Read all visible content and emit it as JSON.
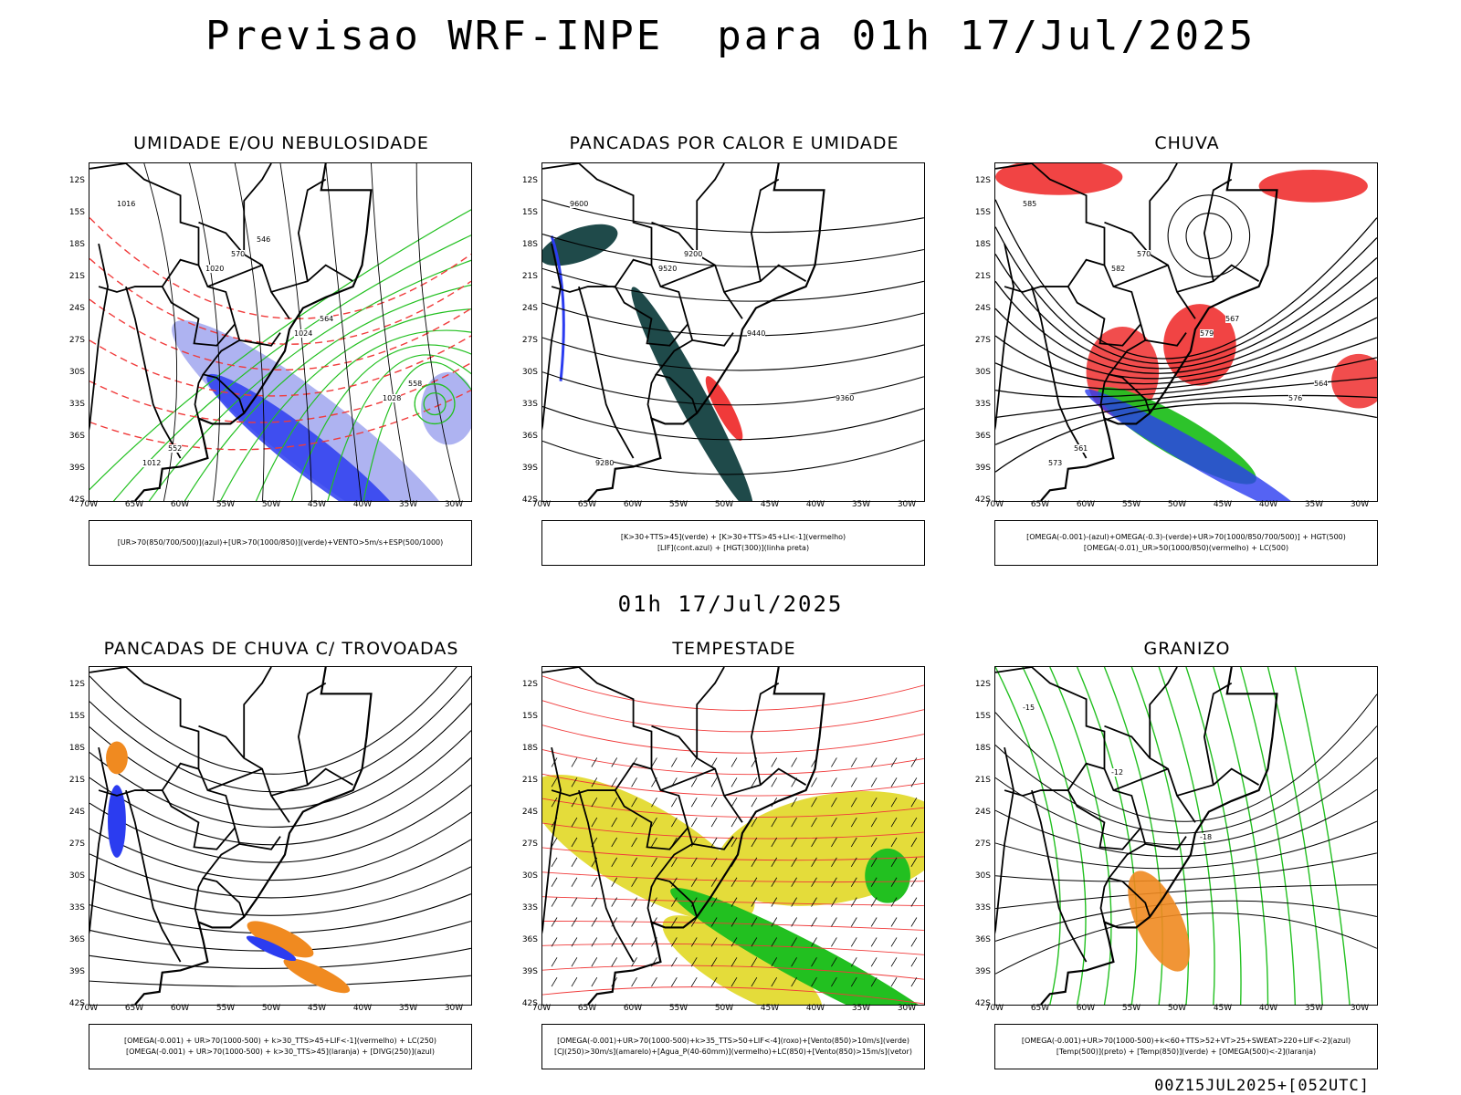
{
  "header": {
    "title": "Previsao WRF-INPE  para 01h 17/Jul/2025"
  },
  "subheader": "01h 17/Jul/2025",
  "footer": "00Z15JUL2025+[052UTC]",
  "lat_labels": [
    "12S",
    "15S",
    "18S",
    "21S",
    "24S",
    "27S",
    "30S",
    "33S",
    "36S",
    "39S",
    "42S"
  ],
  "lon_labels": [
    "70W",
    "65W",
    "60W",
    "55W",
    "50W",
    "45W",
    "40W",
    "35W",
    "30W"
  ],
  "panels": [
    {
      "id": "umidade",
      "title": "UMIDADE E/OU NEBULOSIDADE",
      "legend": [
        "[UR>70(850/700/500)](azul)+[UR>70(1000/850)](verde)+VENTO>5m/s+ESP(500/1000)"
      ],
      "contour_labels": [
        "1016",
        "1020",
        "1024",
        "1028",
        "1012",
        "570",
        "564",
        "558",
        "552",
        "546"
      ]
    },
    {
      "id": "pancadas-calor",
      "title": "PANCADAS POR CALOR E UMIDADE",
      "legend": [
        "[K>30+TTS>45](verde) + [K>30+TTS>45+LI<-1](vermelho)",
        "[LIF](cont.azul) + [HGT(300)](linha preta)"
      ],
      "contour_labels": [
        "9600",
        "9520",
        "9440",
        "9360",
        "9280",
        "9200"
      ]
    },
    {
      "id": "chuva",
      "title": "CHUVA",
      "legend": [
        "[OMEGA(-0.001)-(azul)+OMEGA(-0.3)-(verde)+UR>70(1000/850/700/500)] + HGT(500)",
        "[OMEGA(-0.01)_UR>50(1000/850)(vermelho) + LC(500)"
      ],
      "contour_labels": [
        "585",
        "582",
        "579",
        "576",
        "573",
        "570",
        "567",
        "564",
        "561"
      ]
    },
    {
      "id": "trovoadas",
      "title": "PANCADAS DE CHUVA C/ TROVOADAS",
      "legend": [
        "[OMEGA(-0.001) + UR>70(1000-500) + k>30_TTS>45+LIF<-1](vermelho) + LC(250)",
        "[OMEGA(-0.001) + UR>70(1000-500) + k>30_TTS>45](laranja) + [DIVG(250)](azul)"
      ],
      "contour_labels": []
    },
    {
      "id": "tempestade",
      "title": "TEMPESTADE",
      "legend": [
        "[OMEGA(-0.001)+UR>70(1000-500)+k>35_TTS>50+LIF<-4](roxo)+[Vento(850)>10m/s](verde)",
        "[CJ(250)>30m/s](amarelo)+[Agua_P(40-60mm)](vermelho)+LC(850)+[Vento(850)>15m/s](vetor)"
      ],
      "contour_labels": []
    },
    {
      "id": "granizo",
      "title": "GRANIZO",
      "legend": [
        "[OMEGA(-0.001)+UR>70(1000-500)+k<60+TTS>52+VT>25+SWEAT>220+LIF<-2](azul)",
        "[Temp(500)](preto) + [Temp(850)](verde) + [OMEGA(500)<-2](laranja)"
      ],
      "contour_labels": [
        "-15",
        "-12",
        "-18"
      ]
    }
  ],
  "colors": {
    "blue": "#2b3cf0",
    "lightblue": "#9aa0ee",
    "green": "#22c020",
    "red": "#f03a3a",
    "teal": "#1f4a4a",
    "yellow": "#e4dc3a",
    "orange": "#f08a20"
  }
}
